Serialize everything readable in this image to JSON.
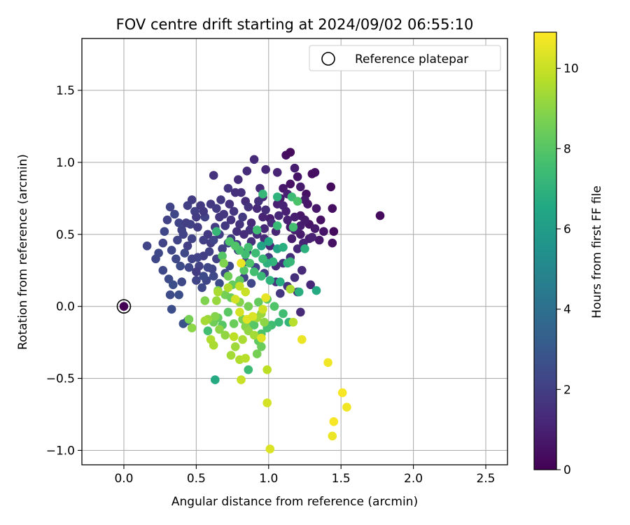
{
  "chart_data": {
    "type": "scatter",
    "title": "FOV centre drift starting at 2024/09/02 06:55:10",
    "xlabel": "Angular distance from reference (arcmin)",
    "ylabel": "Rotation from reference (arcmin)",
    "xlim": [
      -0.29,
      2.65
    ],
    "ylim": [
      -1.1,
      1.86
    ],
    "xticks": [
      0.0,
      0.5,
      1.0,
      1.5,
      2.0,
      2.5
    ],
    "xtick_labels": [
      "0.0",
      "0.5",
      "1.0",
      "1.5",
      "2.0",
      "2.5"
    ],
    "yticks": [
      -1.0,
      -0.5,
      0.0,
      0.5,
      1.0,
      1.5
    ],
    "ytick_labels": [
      "−1.0",
      "−0.5",
      "0.0",
      "0.5",
      "1.0",
      "1.5"
    ],
    "grid": true,
    "legend": {
      "position": "upper-right",
      "label": "Reference platepar"
    },
    "reference_point": {
      "x": 0.0,
      "y": 0.0
    },
    "colorbar": {
      "label": "Hours from first FF file",
      "range": [
        0,
        10.9
      ],
      "colormap": "viridis",
      "ticks": [
        0,
        2,
        4,
        6,
        8,
        10
      ],
      "tick_labels": [
        "0",
        "2",
        "4",
        "6",
        "8",
        "10"
      ]
    },
    "series_fields": [
      "x",
      "y",
      "hours"
    ],
    "points": [
      [
        1.77,
        0.63,
        0.3
      ],
      [
        1.12,
        1.05,
        0.4
      ],
      [
        1.15,
        1.07,
        0.3
      ],
      [
        1.32,
        0.93,
        0.5
      ],
      [
        1.3,
        0.92,
        0.4
      ],
      [
        1.2,
        0.9,
        0.6
      ],
      [
        1.15,
        0.85,
        0.5
      ],
      [
        1.1,
        0.82,
        0.7
      ],
      [
        1.08,
        0.75,
        0.8
      ],
      [
        1.43,
        0.83,
        0.3
      ],
      [
        1.44,
        0.68,
        0.4
      ],
      [
        1.45,
        0.52,
        0.3
      ],
      [
        1.44,
        0.44,
        0.5
      ],
      [
        1.38,
        0.52,
        0.6
      ],
      [
        1.33,
        0.68,
        0.7
      ],
      [
        1.36,
        0.6,
        0.5
      ],
      [
        1.28,
        0.57,
        0.6
      ],
      [
        1.26,
        0.78,
        0.5
      ],
      [
        1.25,
        0.74,
        0.8
      ],
      [
        1.22,
        0.63,
        0.7
      ],
      [
        1.22,
        0.5,
        0.8
      ],
      [
        1.18,
        0.62,
        0.9
      ],
      [
        1.15,
        0.55,
        0.7
      ],
      [
        1.16,
        0.47,
        0.9
      ],
      [
        1.12,
        0.66,
        1.0
      ],
      [
        1.06,
        0.71,
        1.0
      ],
      [
        1.05,
        0.52,
        1.1
      ],
      [
        1.01,
        0.61,
        0.9
      ],
      [
        0.97,
        0.54,
        1.2
      ],
      [
        0.96,
        0.62,
        1.1
      ],
      [
        0.9,
        1.02,
        1.3
      ],
      [
        0.96,
        0.76,
        1.2
      ],
      [
        0.92,
        0.68,
        1.3
      ],
      [
        0.88,
        0.58,
        1.3
      ],
      [
        0.84,
        0.73,
        1.4
      ],
      [
        0.83,
        0.5,
        1.4
      ],
      [
        0.88,
        0.45,
        1.5
      ],
      [
        0.85,
        0.38,
        1.6
      ],
      [
        0.78,
        0.52,
        1.5
      ],
      [
        0.74,
        0.6,
        1.6
      ],
      [
        0.72,
        0.82,
        1.7
      ],
      [
        0.67,
        0.74,
        1.8
      ],
      [
        0.62,
        0.91,
        1.6
      ],
      [
        0.81,
        0.79,
        1.5
      ],
      [
        0.85,
        0.94,
        1.4
      ],
      [
        0.66,
        0.62,
        1.7
      ],
      [
        0.63,
        0.55,
        1.9
      ],
      [
        0.58,
        0.5,
        1.8
      ],
      [
        0.6,
        0.44,
        1.9
      ],
      [
        0.55,
        0.35,
        2.0
      ],
      [
        0.52,
        0.28,
        2.1
      ],
      [
        0.5,
        0.24,
        1.9
      ],
      [
        0.47,
        0.33,
        2.2
      ],
      [
        0.44,
        0.42,
        2.0
      ],
      [
        0.41,
        0.5,
        2.1
      ],
      [
        0.38,
        0.58,
        2.2
      ],
      [
        0.35,
        0.64,
        2.3
      ],
      [
        0.32,
        0.69,
        2.2
      ],
      [
        0.3,
        0.6,
        2.1
      ],
      [
        0.28,
        0.52,
        2.3
      ],
      [
        0.27,
        0.44,
        2.2
      ],
      [
        0.24,
        0.37,
        2.4
      ],
      [
        0.22,
        0.33,
        2.3
      ],
      [
        0.16,
        0.42,
        2.2
      ],
      [
        0.27,
        0.25,
        2.4
      ],
      [
        0.31,
        0.19,
        2.5
      ],
      [
        0.34,
        0.15,
        2.6
      ],
      [
        0.32,
        0.08,
        2.5
      ],
      [
        0.33,
        -0.02,
        2.6
      ],
      [
        0.41,
        -0.12,
        2.7
      ],
      [
        0.44,
        -0.1,
        2.8
      ],
      [
        0.4,
        0.17,
        2.4
      ],
      [
        0.38,
        0.08,
        2.6
      ],
      [
        0.44,
        0.7,
        2.0
      ],
      [
        0.47,
        0.74,
        1.9
      ],
      [
        0.49,
        0.66,
        2.0
      ],
      [
        0.53,
        0.7,
        1.8
      ],
      [
        0.56,
        0.62,
        2.1
      ],
      [
        0.6,
        0.71,
        1.8
      ],
      [
        0.64,
        0.68,
        1.9
      ],
      [
        0.69,
        0.64,
        1.7
      ],
      [
        0.7,
        0.56,
        1.8
      ],
      [
        0.74,
        0.47,
        1.9
      ],
      [
        0.68,
        0.4,
        2.0
      ],
      [
        0.64,
        0.33,
        2.1
      ],
      [
        0.61,
        0.26,
        2.2
      ],
      [
        0.57,
        0.18,
        2.3
      ],
      [
        0.54,
        0.13,
        2.4
      ],
      [
        0.5,
        0.18,
        2.2
      ],
      [
        0.45,
        0.27,
        2.3
      ],
      [
        0.42,
        0.37,
        2.4
      ],
      [
        0.39,
        0.28,
        2.5
      ],
      [
        0.36,
        0.33,
        2.4
      ],
      [
        0.33,
        0.39,
        2.3
      ],
      [
        0.37,
        0.46,
        2.2
      ],
      [
        0.4,
        0.53,
        2.1
      ],
      [
        0.46,
        0.57,
        2.0
      ],
      [
        0.51,
        0.55,
        1.9
      ],
      [
        0.55,
        0.46,
        2.0
      ],
      [
        0.59,
        0.38,
        2.1
      ],
      [
        0.62,
        0.46,
        2.2
      ],
      [
        0.66,
        0.5,
        2.0
      ],
      [
        0.72,
        0.44,
        2.1
      ],
      [
        0.78,
        0.43,
        2.0
      ],
      [
        0.82,
        0.62,
        1.8
      ],
      [
        0.86,
        0.69,
        1.6
      ],
      [
        0.93,
        0.73,
        1.5
      ],
      [
        0.98,
        0.67,
        1.4
      ],
      [
        1.02,
        0.58,
        1.3
      ],
      [
        1.07,
        0.63,
        1.2
      ],
      [
        1.1,
        0.7,
        1.1
      ],
      [
        1.13,
        0.6,
        1.0
      ],
      [
        1.18,
        0.53,
        1.0
      ],
      [
        1.22,
        0.56,
        0.9
      ],
      [
        1.25,
        0.6,
        0.8
      ],
      [
        1.28,
        0.47,
        0.9
      ],
      [
        1.32,
        0.54,
        0.8
      ],
      [
        1.35,
        0.46,
        0.7
      ],
      [
        1.3,
        0.48,
        1.0
      ],
      [
        1.24,
        0.44,
        1.1
      ],
      [
        1.2,
        0.4,
        1.2
      ],
      [
        1.15,
        0.34,
        1.4
      ],
      [
        1.1,
        0.3,
        1.5
      ],
      [
        1.05,
        0.28,
        1.3
      ],
      [
        1.01,
        0.42,
        1.2
      ],
      [
        0.97,
        0.47,
        1.3
      ],
      [
        0.92,
        0.5,
        1.4
      ],
      [
        0.87,
        0.53,
        1.5
      ],
      [
        0.8,
        0.57,
        1.6
      ],
      [
        0.76,
        0.66,
        1.7
      ],
      [
        0.73,
        0.71,
        1.6
      ],
      [
        0.77,
        0.79,
        1.5
      ],
      [
        0.79,
        0.88,
        1.4
      ],
      [
        0.98,
        0.95,
        1.2
      ],
      [
        1.06,
        0.93,
        1.1
      ],
      [
        1.18,
        0.96,
        0.9
      ],
      [
        1.22,
        0.83,
        0.8
      ],
      [
        1.27,
        0.71,
        0.7
      ],
      [
        1.13,
        0.78,
        1.0
      ],
      [
        0.94,
        0.82,
        1.3
      ],
      [
        0.73,
        0.28,
        2.3
      ],
      [
        0.7,
        0.23,
        2.4
      ],
      [
        0.66,
        0.16,
        2.5
      ],
      [
        0.62,
        0.21,
        2.4
      ],
      [
        0.58,
        0.27,
        2.3
      ],
      [
        0.55,
        0.21,
        2.5
      ],
      [
        0.51,
        0.34,
        2.2
      ],
      [
        0.47,
        0.47,
        2.1
      ],
      [
        0.43,
        0.58,
        2.0
      ],
      [
        0.5,
        0.62,
        1.9
      ],
      [
        0.55,
        0.66,
        1.8
      ],
      [
        1.23,
        0.25,
        1.3
      ],
      [
        1.18,
        0.2,
        1.5
      ],
      [
        1.13,
        0.14,
        1.6
      ],
      [
        1.08,
        0.09,
        1.7
      ],
      [
        1.05,
        0.17,
        1.6
      ],
      [
        1.29,
        0.15,
        1.2
      ],
      [
        1.2,
        0.1,
        1.4
      ],
      [
        1.22,
        -0.04,
        1.3
      ],
      [
        0.79,
        0.39,
        2.0
      ],
      [
        0.83,
        0.2,
        2.2
      ],
      [
        0.88,
        0.16,
        2.3
      ],
      [
        0.91,
        0.27,
        2.1
      ],
      [
        0.84,
        0.31,
        2.2
      ],
      [
        0.97,
        0.23,
        1.9
      ],
      [
        1.0,
        0.34,
        1.8
      ],
      [
        0.95,
        0.42,
        6.3
      ],
      [
        1.0,
        0.45,
        6.5
      ],
      [
        1.06,
        0.4,
        6.4
      ],
      [
        1.1,
        0.41,
        6.8
      ],
      [
        1.13,
        0.3,
        7.0
      ],
      [
        1.15,
        0.31,
        7.2
      ],
      [
        1.03,
        0.31,
        7.1
      ],
      [
        0.99,
        0.3,
        6.9
      ],
      [
        0.96,
        0.33,
        7.3
      ],
      [
        0.91,
        0.37,
        7.4
      ],
      [
        0.86,
        0.41,
        7.6
      ],
      [
        0.84,
        0.36,
        7.5
      ],
      [
        0.8,
        0.39,
        7.7
      ],
      [
        0.77,
        0.42,
        7.9
      ],
      [
        0.73,
        0.45,
        7.8
      ],
      [
        0.68,
        0.35,
        8.0
      ],
      [
        0.64,
        0.52,
        7.2
      ],
      [
        0.92,
        0.53,
        7.5
      ],
      [
        0.96,
        0.78,
        7.2
      ],
      [
        1.06,
        0.76,
        7.0
      ],
      [
        1.16,
        0.76,
        7.4
      ],
      [
        1.17,
        0.55,
        7.6
      ],
      [
        1.06,
        0.56,
        7.3
      ],
      [
        1.2,
        0.73,
        7.8
      ],
      [
        1.25,
        0.4,
        6.9
      ],
      [
        1.33,
        0.11,
        6.6
      ],
      [
        1.21,
        0.1,
        6.8
      ],
      [
        1.08,
        0.17,
        6.7
      ],
      [
        1.01,
        0.18,
        7.0
      ],
      [
        0.95,
        0.21,
        7.3
      ],
      [
        0.9,
        0.24,
        7.6
      ],
      [
        0.87,
        0.3,
        7.8
      ],
      [
        0.83,
        0.25,
        8.0
      ],
      [
        0.8,
        0.18,
        8.2
      ],
      [
        0.75,
        0.15,
        8.3
      ],
      [
        0.72,
        0.21,
        8.5
      ],
      [
        0.69,
        0.3,
        8.8
      ],
      [
        0.65,
        0.11,
        8.7
      ],
      [
        0.7,
        0.08,
        8.6
      ],
      [
        0.74,
        0.06,
        8.4
      ],
      [
        0.8,
        0.03,
        8.9
      ],
      [
        0.86,
        0.0,
        8.6
      ],
      [
        0.93,
        0.03,
        8.3
      ],
      [
        0.99,
        0.05,
        8.1
      ],
      [
        1.04,
        0.0,
        7.9
      ],
      [
        1.1,
        -0.05,
        7.5
      ],
      [
        1.14,
        -0.11,
        7.1
      ],
      [
        1.07,
        -0.11,
        7.3
      ],
      [
        1.02,
        -0.13,
        7.5
      ],
      [
        0.99,
        -0.15,
        7.7
      ],
      [
        0.95,
        -0.19,
        7.8
      ],
      [
        0.9,
        -0.13,
        8.0
      ],
      [
        0.87,
        -0.1,
        8.1
      ],
      [
        0.93,
        -0.24,
        8.2
      ],
      [
        0.95,
        -0.28,
        8.4
      ],
      [
        0.92,
        -0.33,
        8.6
      ],
      [
        0.86,
        -0.44,
        7.4
      ],
      [
        0.63,
        -0.51,
        6.6
      ],
      [
        0.58,
        -0.17,
        7.6
      ],
      [
        0.62,
        -0.11,
        8.5
      ],
      [
        0.65,
        -0.08,
        8.3
      ],
      [
        0.68,
        -0.13,
        8.0
      ],
      [
        0.72,
        -0.04,
        8.1
      ],
      [
        0.76,
        -0.12,
        8.4
      ],
      [
        0.82,
        -0.09,
        8.7
      ],
      [
        0.84,
        -0.14,
        8.9
      ],
      [
        0.86,
        -0.17,
        9.1
      ],
      [
        0.92,
        -0.08,
        9.3
      ],
      [
        0.95,
        -0.05,
        9.2
      ],
      [
        0.97,
        -0.11,
        9.0
      ],
      [
        0.9,
        -0.2,
        9.4
      ],
      [
        0.82,
        -0.23,
        9.5
      ],
      [
        0.77,
        -0.28,
        9.3
      ],
      [
        0.74,
        -0.34,
        9.4
      ],
      [
        0.8,
        -0.37,
        9.6
      ],
      [
        0.84,
        -0.36,
        9.7
      ],
      [
        0.76,
        -0.21,
        9.8
      ],
      [
        0.7,
        -0.2,
        9.1
      ],
      [
        0.66,
        -0.16,
        9.0
      ],
      [
        0.63,
        -0.07,
        8.9
      ],
      [
        0.58,
        -0.09,
        9.2
      ],
      [
        0.6,
        -0.23,
        9.6
      ],
      [
        0.62,
        -0.27,
        9.5
      ],
      [
        0.56,
        -0.1,
        9.4
      ],
      [
        0.47,
        -0.15,
        9.0
      ],
      [
        0.45,
        -0.09,
        8.6
      ],
      [
        0.56,
        0.04,
        8.8
      ],
      [
        0.64,
        0.04,
        9.2
      ],
      [
        0.65,
        0.1,
        9.5
      ],
      [
        0.72,
        0.13,
        9.6
      ],
      [
        0.8,
        0.14,
        9.9
      ],
      [
        0.84,
        0.1,
        10.0
      ],
      [
        0.77,
        0.05,
        10.2
      ],
      [
        0.8,
        -0.04,
        10.2
      ],
      [
        0.85,
        -0.09,
        10.4
      ],
      [
        0.89,
        -0.07,
        10.3
      ],
      [
        0.96,
        -0.02,
        10.1
      ],
      [
        0.98,
        0.06,
        10.5
      ],
      [
        0.81,
        0.3,
        10.6
      ],
      [
        0.95,
        -0.22,
        10.4
      ],
      [
        0.81,
        -0.51,
        10.0
      ],
      [
        0.99,
        -0.44,
        9.8
      ],
      [
        0.99,
        -0.67,
        10.2
      ],
      [
        1.01,
        -0.99,
        10.3
      ],
      [
        1.23,
        -0.23,
        10.6
      ],
      [
        1.41,
        -0.39,
        10.7
      ],
      [
        1.51,
        -0.6,
        10.8
      ],
      [
        1.54,
        -0.7,
        10.7
      ],
      [
        1.45,
        -0.8,
        10.8
      ],
      [
        1.44,
        -0.9,
        10.6
      ],
      [
        1.17,
        -0.11,
        9.7
      ],
      [
        1.15,
        0.12,
        9.5
      ]
    ]
  }
}
